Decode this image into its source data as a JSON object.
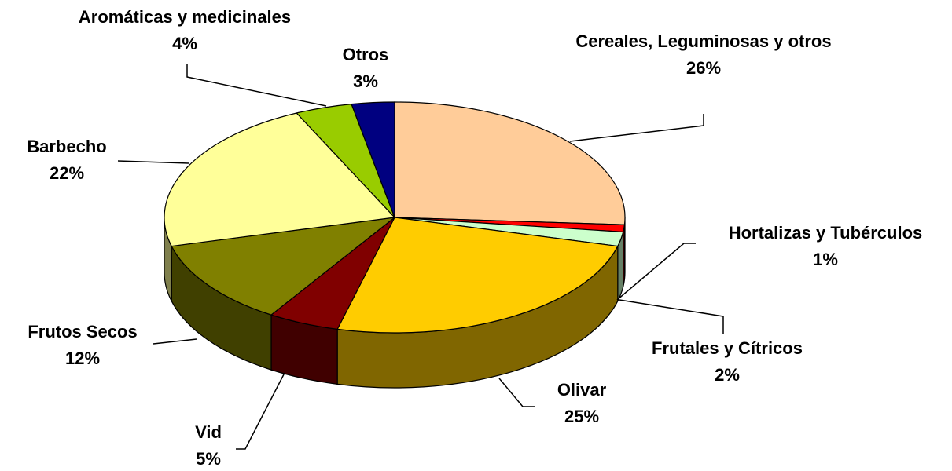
{
  "chart_data": {
    "type": "pie3d",
    "categories": [
      "Cereales, Leguminosas y otros",
      "Hortalizas y Tubérculos",
      "Frutales y Cítricos",
      "Olivar",
      "Vid",
      "Frutos Secos",
      "Barbecho",
      "Aromáticas y medicinales",
      "Otros"
    ],
    "values": [
      26,
      1,
      2,
      25,
      5,
      12,
      22,
      4,
      3
    ],
    "value_labels": [
      "26%",
      "1%",
      "2%",
      "25%",
      "5%",
      "12%",
      "22%",
      "4%",
      "3%"
    ],
    "colors": [
      "#FFCC99",
      "#FF0000",
      "#CCFFCC",
      "#FFCC00",
      "#800000",
      "#808000",
      "#FFFF99",
      "#99CC00",
      "#000080"
    ]
  }
}
